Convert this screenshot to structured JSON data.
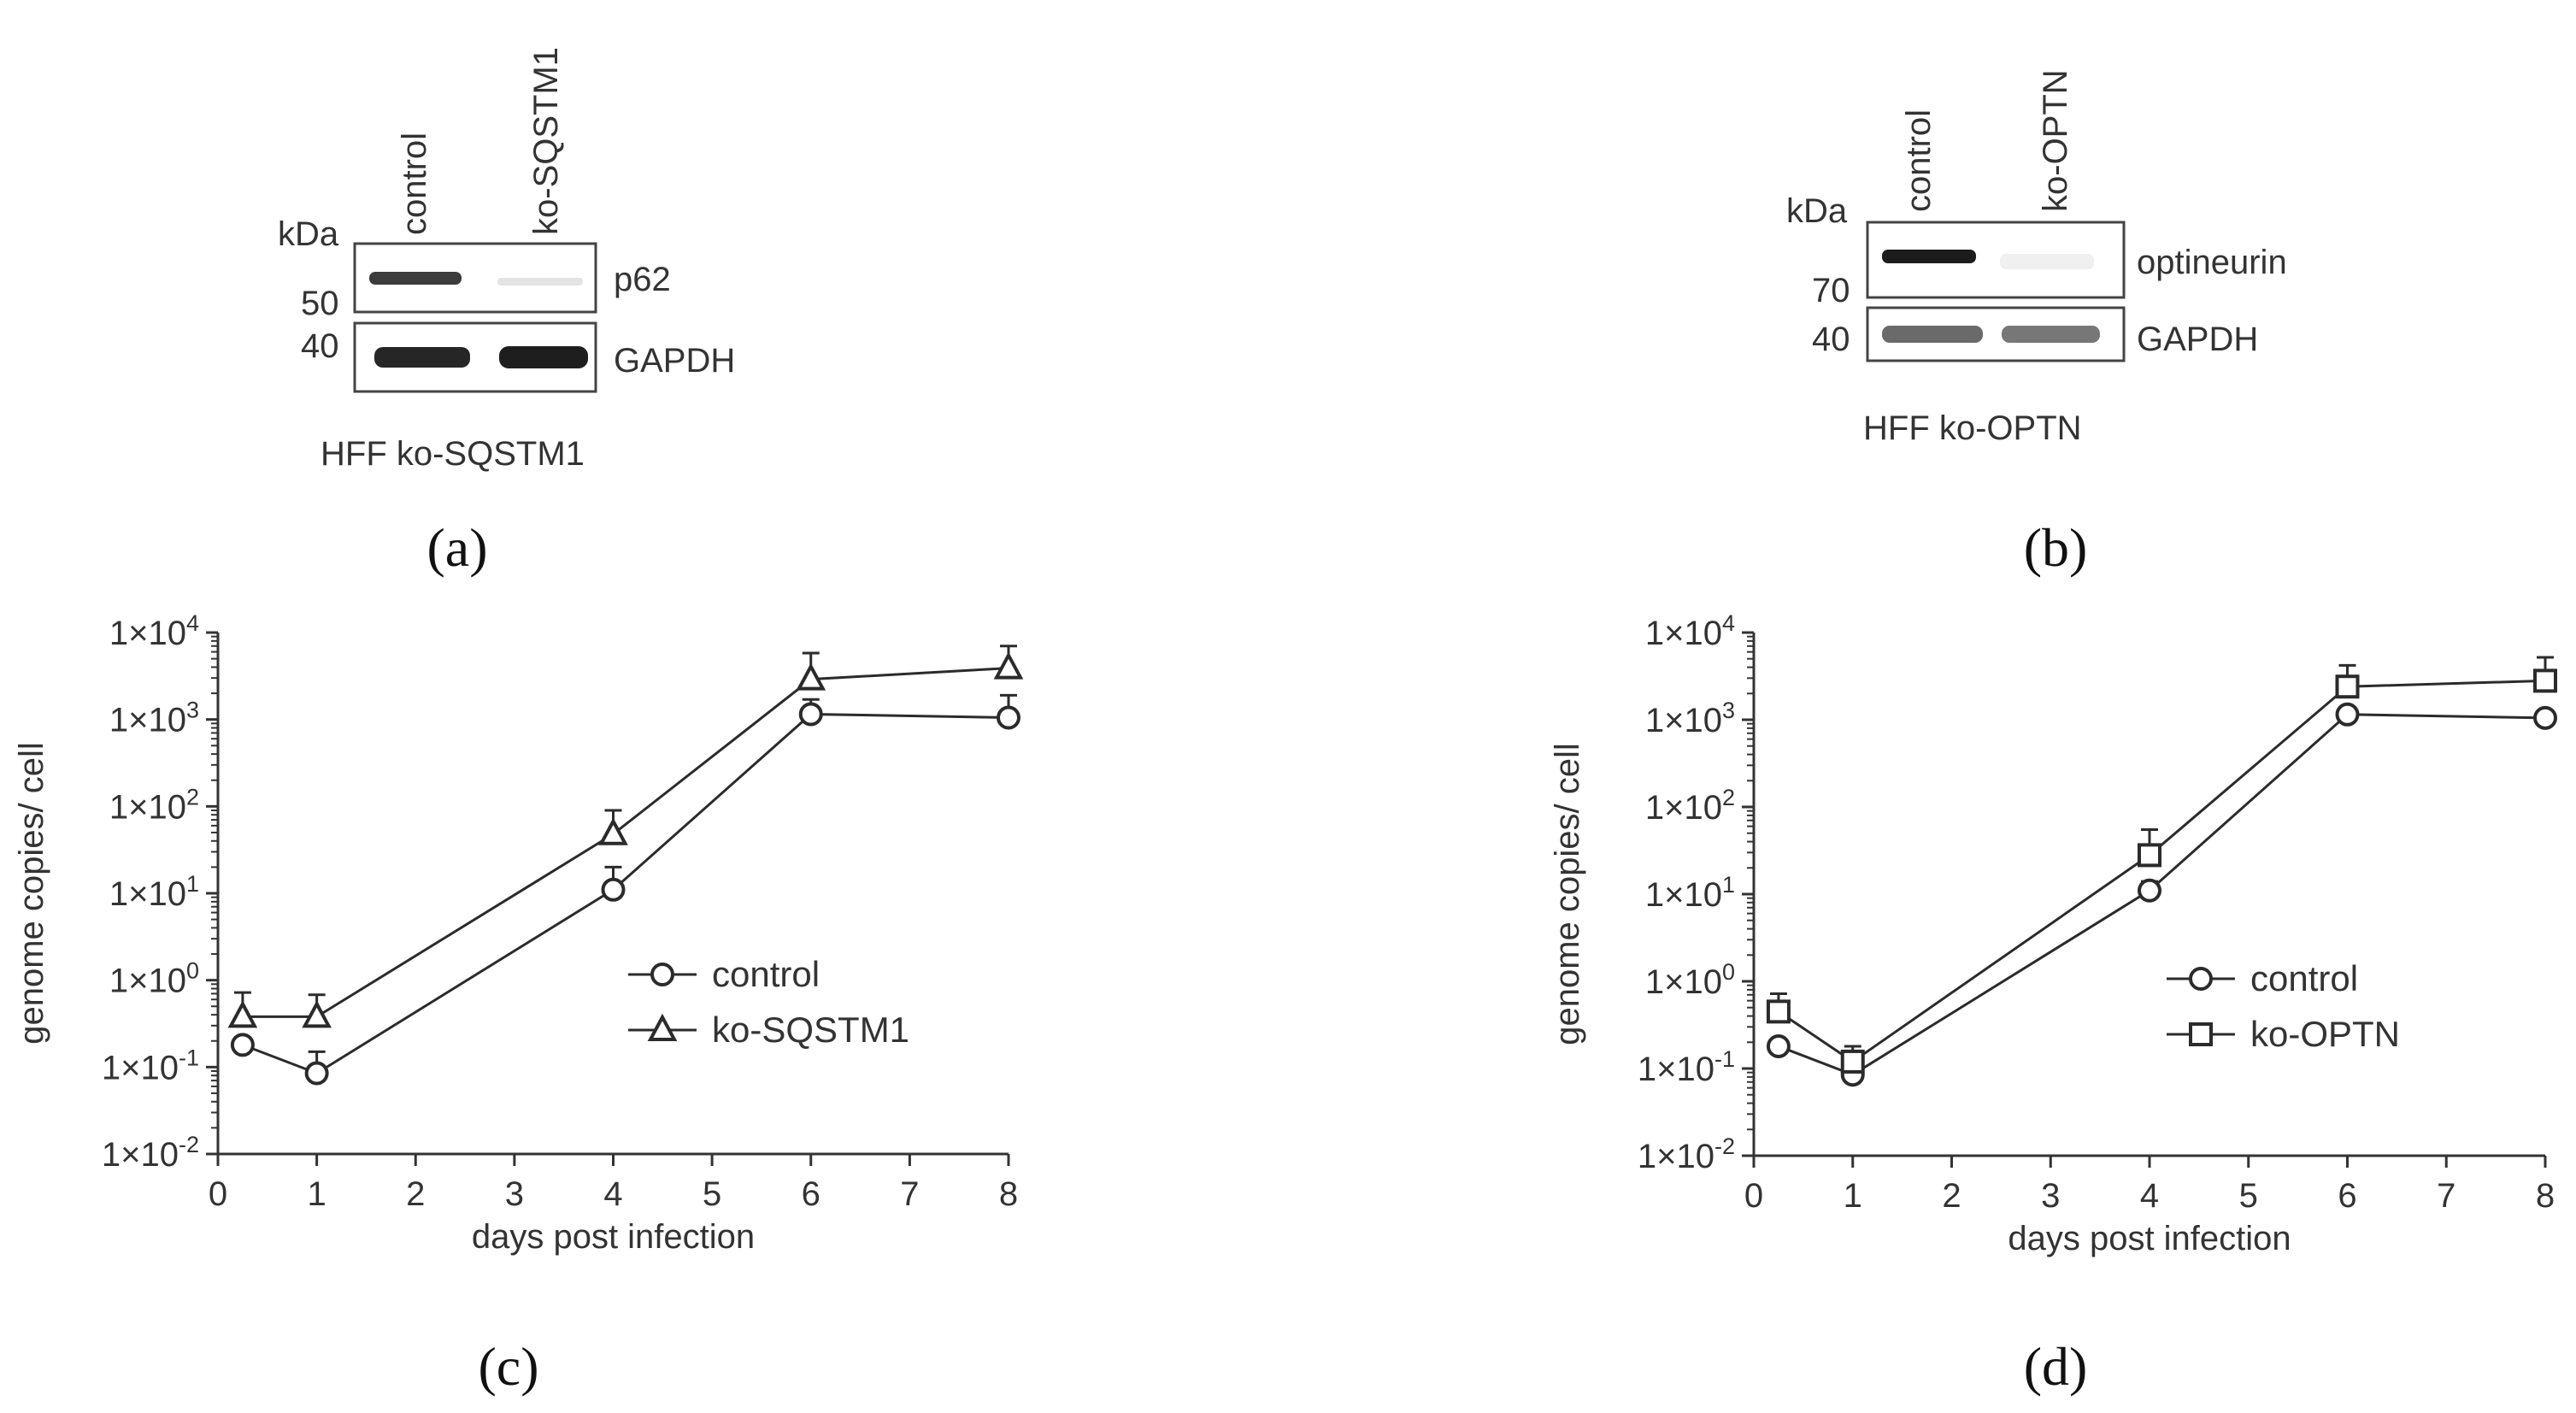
{
  "panels": {
    "a": {
      "label": "(a)",
      "kda": "kDa",
      "lanes": [
        "control",
        "ko-SQSTM1"
      ],
      "rows": [
        {
          "protein": "p62",
          "marker": "50"
        },
        {
          "protein": "GAPDH",
          "marker": "40"
        }
      ],
      "caption": "HFF ko-SQSTM1"
    },
    "b": {
      "label": "(b)",
      "kda": "kDa",
      "lanes": [
        "control",
        "ko-OPTN"
      ],
      "rows": [
        {
          "protein": "optineurin",
          "marker": "70"
        },
        {
          "protein": "GAPDH",
          "marker": "40"
        }
      ],
      "caption": "HFF ko-OPTN"
    },
    "c": {
      "label": "(c)"
    },
    "d": {
      "label": "(d)"
    }
  },
  "chart_data": [
    {
      "type": "line",
      "panel": "c",
      "xlabel": "days post infection",
      "ylabel": "genome copies/ cell",
      "xlim": [
        0,
        8
      ],
      "ylim": [
        0.01,
        10000
      ],
      "yscale": "log",
      "xticks": [
        "0",
        "1",
        "2",
        "3",
        "4",
        "5",
        "6",
        "7",
        "8"
      ],
      "yticks": [
        {
          "base": "1×10",
          "exp": "4"
        },
        {
          "base": "1×10",
          "exp": "3"
        },
        {
          "base": "1×10",
          "exp": "2"
        },
        {
          "base": "1×10",
          "exp": "1"
        },
        {
          "base": "1×10",
          "exp": "0"
        },
        {
          "base": "1×10",
          "exp": "-1"
        },
        {
          "base": "1×10",
          "exp": "-2"
        }
      ],
      "legend_position": "center-right",
      "series": [
        {
          "name": "control",
          "marker": "circle",
          "x": [
            0.25,
            1,
            4,
            6,
            8
          ],
          "y": [
            0.18,
            0.085,
            11,
            1150,
            1050
          ],
          "err_upper": [
            0.22,
            0.15,
            20,
            1700,
            1900
          ]
        },
        {
          "name": "ko-SQSTM1",
          "marker": "triangle",
          "x": [
            0.25,
            1,
            4,
            6,
            8
          ],
          "y": [
            0.38,
            0.38,
            48,
            2900,
            3900
          ],
          "err_upper": [
            0.72,
            0.68,
            90,
            5800,
            7000
          ]
        }
      ]
    },
    {
      "type": "line",
      "panel": "d",
      "xlabel": "days post infection",
      "ylabel": "genome copies/ cell",
      "xlim": [
        0,
        8
      ],
      "ylim": [
        0.01,
        10000
      ],
      "yscale": "log",
      "xticks": [
        "0",
        "1",
        "2",
        "3",
        "4",
        "5",
        "6",
        "7",
        "8"
      ],
      "yticks": [
        {
          "base": "1×10",
          "exp": "4"
        },
        {
          "base": "1×10",
          "exp": "3"
        },
        {
          "base": "1×10",
          "exp": "2"
        },
        {
          "base": "1×10",
          "exp": "1"
        },
        {
          "base": "1×10",
          "exp": "0"
        },
        {
          "base": "1×10",
          "exp": "-1"
        },
        {
          "base": "1×10",
          "exp": "-2"
        }
      ],
      "legend_position": "center-right",
      "series": [
        {
          "name": "control",
          "marker": "circle",
          "x": [
            0.25,
            1,
            4,
            6,
            8
          ],
          "y": [
            0.18,
            0.085,
            11,
            1150,
            1050
          ],
          "err_upper": [
            0.2,
            0.1,
            14,
            1300,
            1200
          ]
        },
        {
          "name": "ko-OPTN",
          "marker": "square",
          "x": [
            0.25,
            1,
            4,
            6,
            8
          ],
          "y": [
            0.45,
            0.12,
            28,
            2400,
            2800
          ],
          "err_upper": [
            0.72,
            0.18,
            55,
            4200,
            5200
          ]
        }
      ]
    }
  ]
}
